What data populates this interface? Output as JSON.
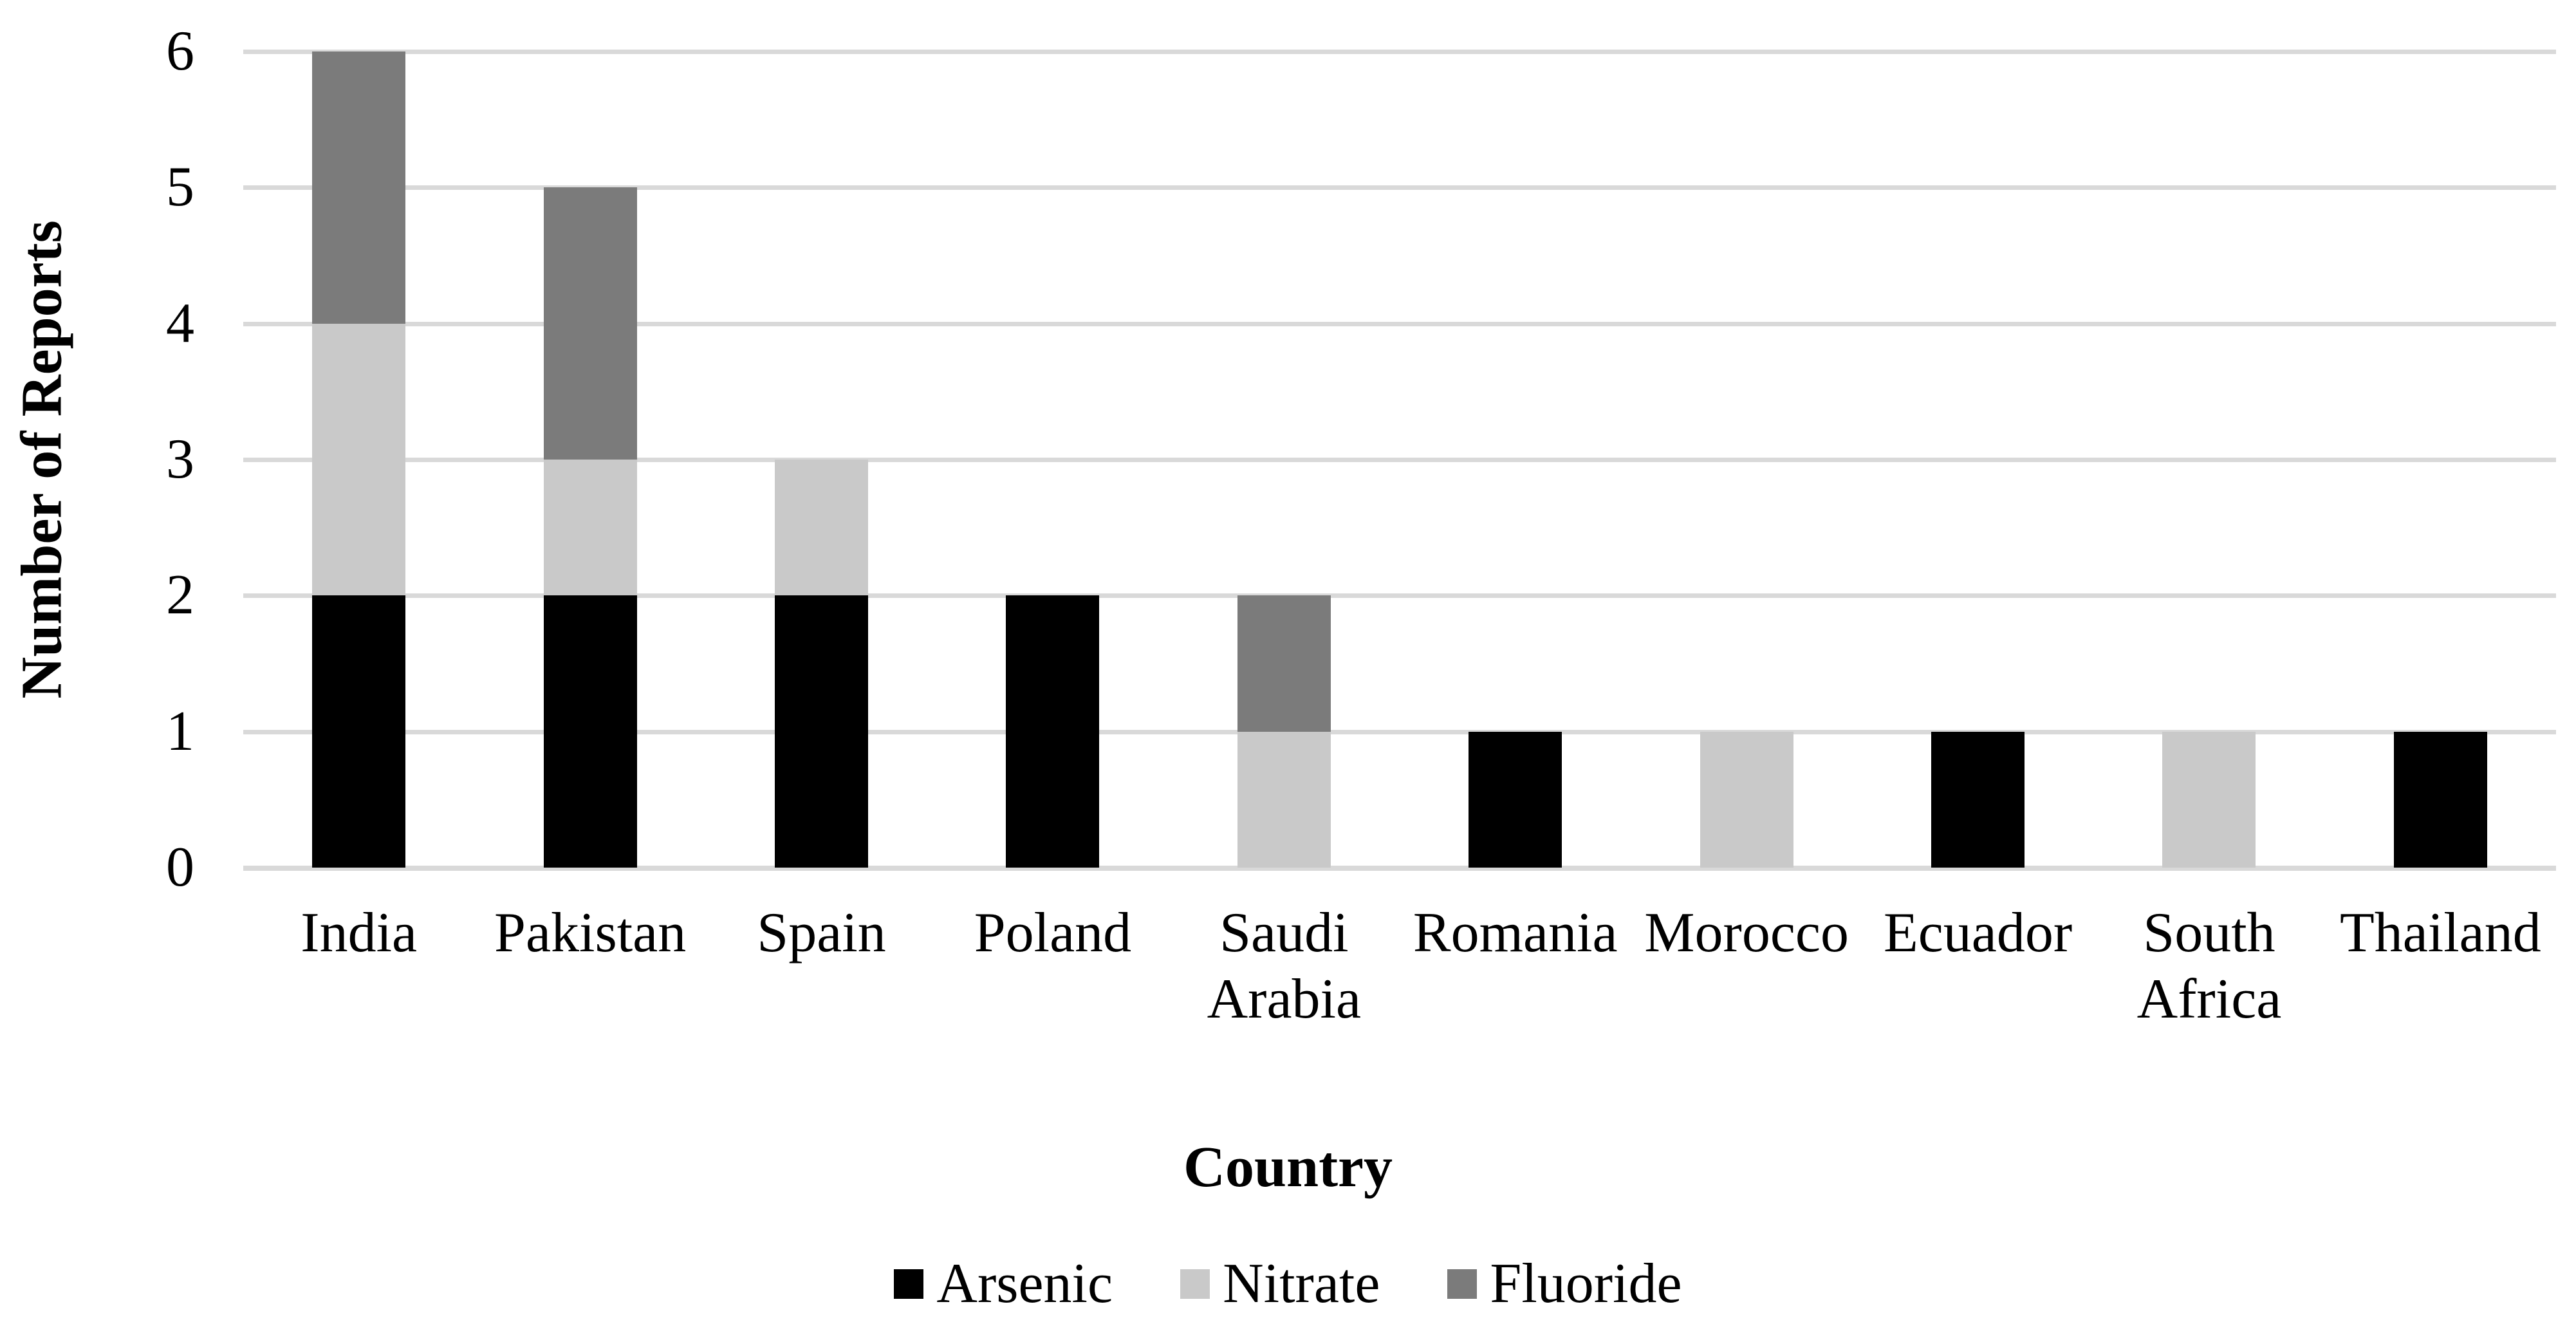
{
  "chart_data": {
    "type": "bar",
    "stacked": true,
    "xlabel": "Country",
    "ylabel": "Number of Reports",
    "categories": [
      "India",
      "Pakistan",
      "Spain",
      "Poland",
      "Saudi Arabia",
      "Romania",
      "Morocco",
      "Ecuador",
      "South Africa",
      "Thailand"
    ],
    "series": [
      {
        "name": "Arsenic",
        "color": "#000000",
        "values": [
          2,
          2,
          2,
          2,
          0,
          1,
          0,
          1,
          0,
          1
        ]
      },
      {
        "name": "Nitrate",
        "color": "#C9C9C9",
        "values": [
          2,
          1,
          1,
          0,
          1,
          0,
          1,
          0,
          1,
          0
        ]
      },
      {
        "name": "Fluoride",
        "color": "#7B7B7B",
        "values": [
          2,
          2,
          0,
          0,
          1,
          0,
          0,
          0,
          0,
          0
        ]
      }
    ],
    "totals": [
      6,
      5,
      3,
      2,
      2,
      1,
      1,
      1,
      1,
      1
    ],
    "ylim": [
      0,
      6
    ],
    "yticks": [
      0,
      1,
      2,
      3,
      4,
      5,
      6
    ],
    "grid": "horizontal",
    "gridline_color": "#D9D9D9",
    "legend_position": "bottom",
    "legend": [
      "Arsenic",
      "Nitrate",
      "Fluoride"
    ]
  }
}
